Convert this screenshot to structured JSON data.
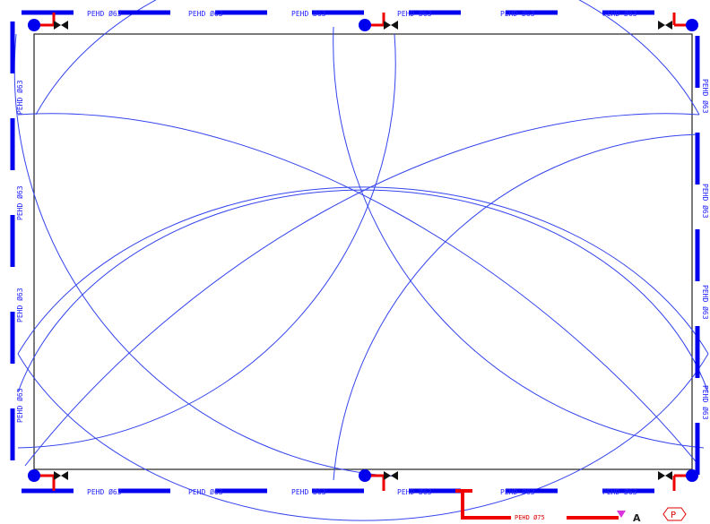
{
  "colors": {
    "pipe": "#0000ee",
    "spray_arc": "#3344ee",
    "border": "#222222",
    "supply": "#ee0000",
    "valve": "#111111",
    "marker": "#dd33dd"
  },
  "pipe_labels": {
    "top": [
      "PEHD Ø63",
      "PEHD Ø63",
      "PEHD Ø63",
      "PEHD Ø63",
      "PEHD Ø63",
      "PEHD Ø63"
    ],
    "bottom": [
      "PEHD Ø63",
      "PEHD Ø63",
      "PEHD Ø63",
      "PEHD Ø63",
      "PEHD Ø63",
      "PEHD Ø63"
    ],
    "left": [
      "PEHD Ø63",
      "PEHD Ø63",
      "PEHD Ø63",
      "PEHD Ø63"
    ],
    "right": [
      "PEHD Ø63",
      "PEHD Ø63",
      "PEHD Ø63",
      "PEHD Ø63"
    ]
  },
  "supply_pipe_label": "PEHD Ø75",
  "section_marker_label": "A",
  "pump_symbol_label": "P",
  "icons": {
    "sprinkler_head": "sprinkler-head-icon",
    "valve": "butterfly-valve-icon",
    "section_marker": "section-marker-icon",
    "pump": "pump-symbol-icon"
  }
}
